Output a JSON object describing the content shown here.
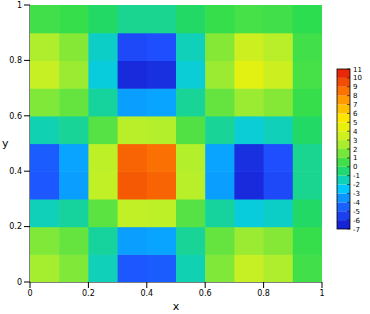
{
  "chart_data": {
    "type": "heatmap",
    "x_label": "x",
    "y_label": "y",
    "x": [
      0.05,
      0.15,
      0.25,
      0.35,
      0.45,
      0.55,
      0.65,
      0.75,
      0.85,
      0.95
    ],
    "y": [
      0.05,
      0.15,
      0.25,
      0.35,
      0.45,
      0.55,
      0.65,
      0.75,
      0.85,
      0.95
    ],
    "z": [
      [
        2.4,
        1.7,
        -1.5,
        -4.7,
        -4.6,
        -1.4,
        1.7,
        3.2,
        2.6,
        0.5
      ],
      [
        1.7,
        1.2,
        -1.1,
        -3.3,
        -3.2,
        -1.0,
        1.2,
        2.2,
        1.8,
        0.3
      ],
      [
        -1.5,
        -1.1,
        1.0,
        3.0,
        2.9,
        0.9,
        -1.1,
        -2.0,
        -1.7,
        -0.3
      ],
      [
        -4.7,
        -3.3,
        3.0,
        9.2,
        8.9,
        2.8,
        -3.3,
        -6.2,
        -5.1,
        -0.9
      ],
      [
        -4.6,
        -3.2,
        2.9,
        8.9,
        8.6,
        2.7,
        -3.2,
        -6.0,
        -4.9,
        -0.9
      ],
      [
        -1.4,
        -1.0,
        0.9,
        2.8,
        2.7,
        0.8,
        -1.0,
        -1.9,
        -1.5,
        -0.3
      ],
      [
        1.7,
        1.2,
        -1.1,
        -3.3,
        -3.2,
        -1.0,
        1.2,
        2.2,
        1.8,
        0.3
      ],
      [
        3.2,
        2.2,
        -2.0,
        -6.2,
        -6.0,
        -1.9,
        2.2,
        4.2,
        3.4,
        0.6
      ],
      [
        2.6,
        1.8,
        -1.7,
        -5.1,
        -4.9,
        -1.5,
        1.8,
        3.4,
        2.8,
        0.5
      ],
      [
        0.5,
        0.3,
        -0.3,
        -0.9,
        -0.9,
        -0.3,
        0.3,
        0.6,
        0.5,
        0.1
      ]
    ],
    "xlim": [
      0,
      1
    ],
    "ylim": [
      0,
      1
    ],
    "xticks": [
      0,
      0.2,
      0.4,
      0.6,
      0.8,
      1
    ],
    "yticks": [
      0,
      0.2,
      0.4,
      0.6,
      0.8,
      1
    ],
    "colorbar_range": [
      -7,
      11
    ],
    "colorbar_ticks": [
      11,
      10,
      9,
      8,
      7,
      6,
      5,
      4,
      3,
      2,
      1,
      0,
      -1,
      -2,
      -3,
      -4,
      -5,
      -6,
      -7
    ]
  }
}
